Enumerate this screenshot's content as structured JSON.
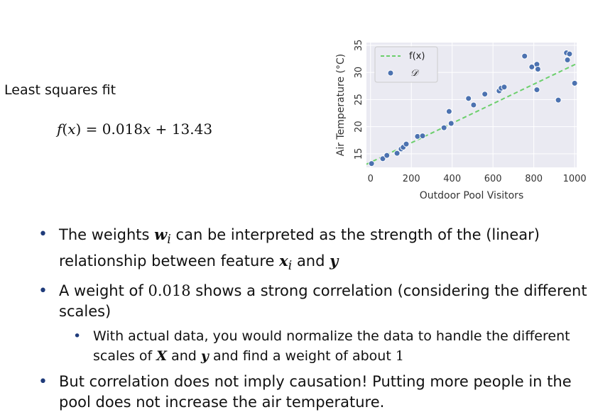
{
  "heading": "Least squares fit",
  "formula": {
    "lhs": "f",
    "arg": "x",
    "rhs_a": "0.018",
    "rhs_var": "x",
    "rhs_b": "13.43"
  },
  "chart_data": {
    "type": "scatter",
    "xlabel": "Outdoor Pool Visitors",
    "ylabel": "Air Temperature (°C)",
    "xlim": [
      -20,
      1010
    ],
    "ylim": [
      12.5,
      35.5
    ],
    "xticks": [
      0,
      200,
      400,
      600,
      800,
      1000
    ],
    "yticks": [
      15,
      20,
      25,
      30,
      35
    ],
    "grid": true,
    "legend_position": "top-left",
    "fit": {
      "name": "f(x)",
      "slope": 0.018,
      "intercept": 13.43,
      "color": "#6ccf6c",
      "style": "dashed"
    },
    "points_series": {
      "name": "𝒟",
      "color": "#4c72b0"
    },
    "points": [
      {
        "x": 5,
        "y": 13.2
      },
      {
        "x": 60,
        "y": 14.1
      },
      {
        "x": 80,
        "y": 14.7
      },
      {
        "x": 130,
        "y": 15.1
      },
      {
        "x": 150,
        "y": 15.9
      },
      {
        "x": 160,
        "y": 16.2
      },
      {
        "x": 175,
        "y": 16.8
      },
      {
        "x": 230,
        "y": 18.2
      },
      {
        "x": 255,
        "y": 18.3
      },
      {
        "x": 360,
        "y": 19.8
      },
      {
        "x": 395,
        "y": 20.6
      },
      {
        "x": 385,
        "y": 22.8
      },
      {
        "x": 480,
        "y": 25.2
      },
      {
        "x": 505,
        "y": 24.0
      },
      {
        "x": 560,
        "y": 26.0
      },
      {
        "x": 630,
        "y": 26.6
      },
      {
        "x": 640,
        "y": 27.1
      },
      {
        "x": 655,
        "y": 27.3
      },
      {
        "x": 755,
        "y": 33.0
      },
      {
        "x": 790,
        "y": 31.0
      },
      {
        "x": 815,
        "y": 31.5
      },
      {
        "x": 820,
        "y": 30.6
      },
      {
        "x": 815,
        "y": 26.8
      },
      {
        "x": 920,
        "y": 24.9
      },
      {
        "x": 960,
        "y": 33.6
      },
      {
        "x": 975,
        "y": 33.4
      },
      {
        "x": 965,
        "y": 32.3
      },
      {
        "x": 1000,
        "y": 28.0
      }
    ]
  },
  "bullets": {
    "b1": {
      "t1": "The weights",
      "w": "w",
      "wi": "i",
      "t2": "can be interpreted as the strength of the (linear) relationship between feature",
      "x": "x",
      "xi": "i",
      "t3": "and",
      "y": "y"
    },
    "b2": {
      "t1": "A weight of",
      "num": "0.018",
      "t2": "shows a strong correlation (considering the different scales)"
    },
    "b2sub": {
      "t1": "With actual data, you would normalize the data to handle the different scales of",
      "X": "X",
      "t2": "and",
      "y": "y",
      "t3": "and find a weight of about",
      "num": "1"
    },
    "b3": {
      "t1": "But correlation does not imply causation! Putting more people in the pool does not increase the air temperature."
    }
  }
}
